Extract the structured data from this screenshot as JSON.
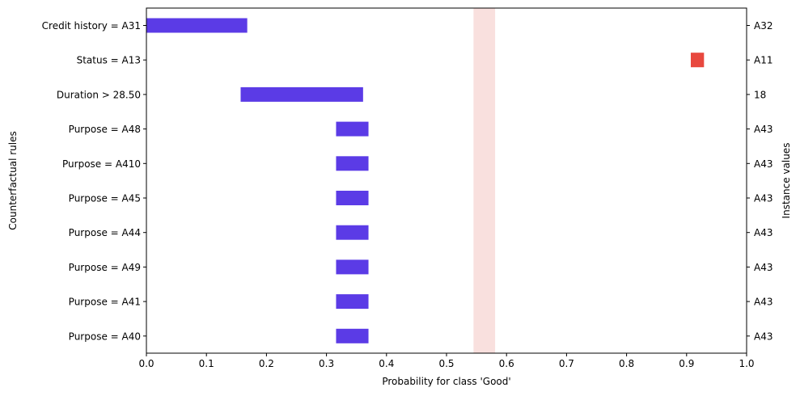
{
  "chart_data": {
    "type": "bar",
    "xlabel": "Probability for class 'Good'",
    "ylabel": "Counterfactual rules",
    "ylabel_right": "Instance values",
    "xlim": [
      0.0,
      1.0
    ],
    "xticks": [
      "0.0",
      "0.1",
      "0.2",
      "0.3",
      "0.4",
      "0.5",
      "0.6",
      "0.7",
      "0.8",
      "0.9",
      "1.0"
    ],
    "grid": false,
    "reference_band": {
      "from": 0.545,
      "to": 0.581,
      "color": "#f9e0de"
    },
    "rows": [
      {
        "rule": "Credit history = A31",
        "instance_value": "A32",
        "start": 0.0,
        "end": 0.168,
        "color": "#5b3be6"
      },
      {
        "rule": "Status = A13",
        "instance_value": "A11",
        "start": 0.907,
        "end": 0.929,
        "color": "#e8483e"
      },
      {
        "rule": "Duration > 28.50",
        "instance_value": "18",
        "start": 0.157,
        "end": 0.361,
        "color": "#5b3be6"
      },
      {
        "rule": "Purpose = A48",
        "instance_value": "A43",
        "start": 0.316,
        "end": 0.37,
        "color": "#5b3be6"
      },
      {
        "rule": "Purpose = A410",
        "instance_value": "A43",
        "start": 0.316,
        "end": 0.37,
        "color": "#5b3be6"
      },
      {
        "rule": "Purpose = A45",
        "instance_value": "A43",
        "start": 0.316,
        "end": 0.37,
        "color": "#5b3be6"
      },
      {
        "rule": "Purpose = A44",
        "instance_value": "A43",
        "start": 0.316,
        "end": 0.37,
        "color": "#5b3be6"
      },
      {
        "rule": "Purpose = A49",
        "instance_value": "A43",
        "start": 0.316,
        "end": 0.37,
        "color": "#5b3be6"
      },
      {
        "rule": "Purpose = A41",
        "instance_value": "A43",
        "start": 0.316,
        "end": 0.37,
        "color": "#5b3be6"
      },
      {
        "rule": "Purpose = A40",
        "instance_value": "A43",
        "start": 0.316,
        "end": 0.37,
        "color": "#5b3be6"
      }
    ]
  }
}
